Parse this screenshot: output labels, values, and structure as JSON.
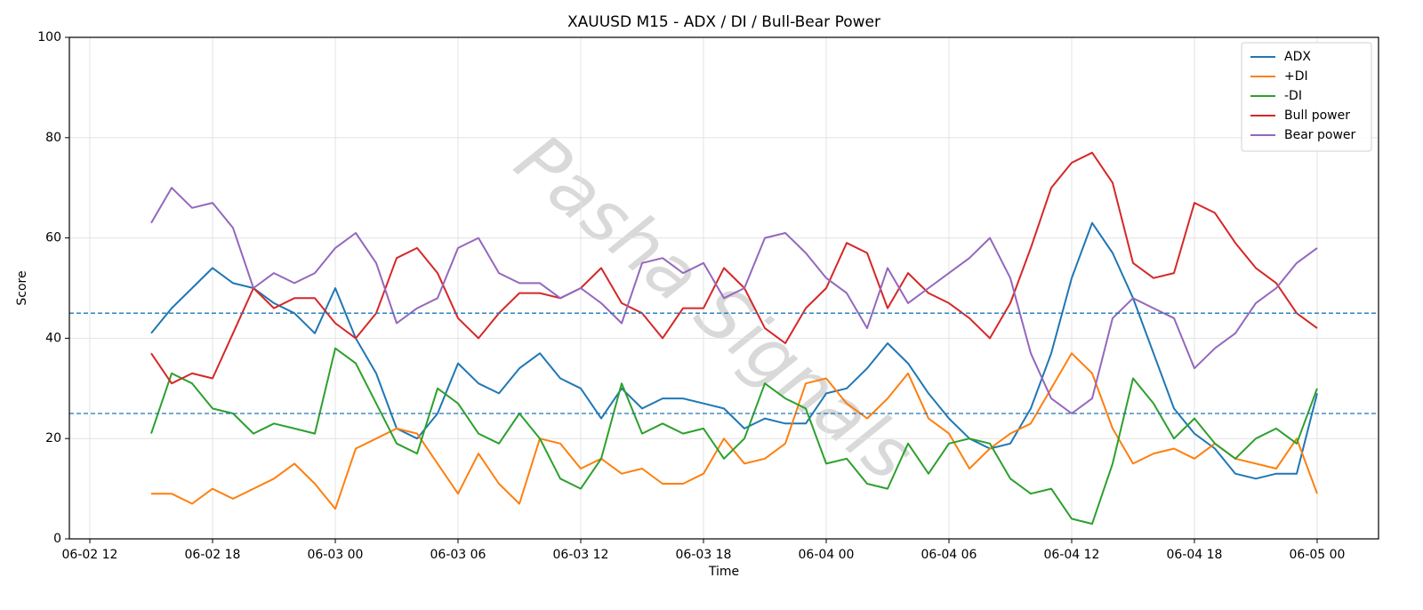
{
  "chart_data": {
    "type": "line",
    "title": "XAUUSD M15 - ADX / DI / Bull-Bear Power",
    "x_label": "Time",
    "y_label": "Score",
    "watermark": "Pasha Signals",
    "x": [
      "06-02 15",
      "06-02 16",
      "06-02 17",
      "06-02 18",
      "06-02 19",
      "06-02 20",
      "06-02 21",
      "06-02 22",
      "06-02 23",
      "06-03 00",
      "06-03 01",
      "06-03 02",
      "06-03 03",
      "06-03 04",
      "06-03 05",
      "06-03 06",
      "06-03 07",
      "06-03 08",
      "06-03 09",
      "06-03 10",
      "06-03 11",
      "06-03 12",
      "06-03 13",
      "06-03 14",
      "06-03 15",
      "06-03 16",
      "06-03 17",
      "06-03 18",
      "06-03 19",
      "06-03 20",
      "06-03 21",
      "06-03 22",
      "06-03 23",
      "06-04 00",
      "06-04 01",
      "06-04 02",
      "06-04 03",
      "06-04 04",
      "06-04 05",
      "06-04 06",
      "06-04 07",
      "06-04 08",
      "06-04 09",
      "06-04 10",
      "06-04 11",
      "06-04 12",
      "06-04 13",
      "06-04 14",
      "06-04 15",
      "06-04 16",
      "06-04 17",
      "06-04 18",
      "06-04 19",
      "06-04 20",
      "06-04 21",
      "06-04 22",
      "06-04 23",
      "06-05 00"
    ],
    "series": [
      {
        "name": "ADX",
        "color": "#1f77b4",
        "values": [
          41,
          46,
          50,
          54,
          51,
          50,
          47,
          45,
          41,
          50,
          40,
          33,
          22,
          20,
          25,
          35,
          31,
          29,
          34,
          37,
          32,
          30,
          24,
          30,
          26,
          28,
          28,
          27,
          26,
          22,
          24,
          23,
          23,
          29,
          30,
          34,
          39,
          35,
          29,
          24,
          20,
          18,
          19,
          26,
          37,
          52,
          63,
          57,
          48,
          37,
          26,
          21,
          18,
          13,
          12,
          13,
          13,
          29
        ]
      },
      {
        "name": "+DI",
        "color": "#ff7f0e",
        "values": [
          9,
          9,
          7,
          10,
          8,
          10,
          12,
          15,
          11,
          6,
          18,
          20,
          22,
          21,
          15,
          9,
          17,
          11,
          7,
          20,
          19,
          14,
          16,
          13,
          14,
          11,
          11,
          13,
          20,
          15,
          16,
          19,
          31,
          32,
          27,
          24,
          28,
          33,
          24,
          21,
          14,
          18,
          21,
          23,
          30,
          37,
          33,
          22,
          15,
          17,
          18,
          16,
          19,
          16,
          15,
          14,
          20,
          9
        ]
      },
      {
        "name": "-DI",
        "color": "#2ca02c",
        "values": [
          21,
          33,
          31,
          26,
          25,
          21,
          23,
          22,
          21,
          38,
          35,
          27,
          19,
          17,
          30,
          27,
          21,
          19,
          25,
          20,
          12,
          10,
          16,
          31,
          21,
          23,
          21,
          22,
          16,
          20,
          31,
          28,
          26,
          15,
          16,
          11,
          10,
          19,
          13,
          19,
          20,
          19,
          12,
          9,
          10,
          4,
          3,
          15,
          32,
          27,
          20,
          24,
          19,
          16,
          20,
          22,
          19,
          30
        ]
      },
      {
        "name": "Bull power",
        "color": "#d62728",
        "values": [
          37,
          31,
          33,
          32,
          41,
          50,
          46,
          48,
          48,
          43,
          40,
          45,
          56,
          58,
          53,
          44,
          40,
          45,
          49,
          49,
          48,
          50,
          54,
          47,
          45,
          40,
          46,
          46,
          54,
          50,
          42,
          39,
          46,
          50,
          59,
          57,
          46,
          53,
          49,
          47,
          44,
          40,
          47,
          58,
          70,
          75,
          77,
          71,
          55,
          52,
          53,
          67,
          65,
          59,
          54,
          51,
          45,
          42
        ]
      },
      {
        "name": "Bear power",
        "color": "#9467bd",
        "values": [
          63,
          70,
          66,
          67,
          62,
          50,
          53,
          51,
          53,
          58,
          61,
          55,
          43,
          46,
          48,
          58,
          60,
          53,
          51,
          51,
          48,
          50,
          47,
          43,
          55,
          56,
          53,
          55,
          48,
          50,
          60,
          61,
          57,
          52,
          49,
          42,
          54,
          47,
          50,
          53,
          56,
          60,
          52,
          37,
          28,
          25,
          28,
          44,
          48,
          46,
          44,
          34,
          38,
          41,
          47,
          50,
          55,
          58
        ]
      }
    ],
    "hlines": [
      25,
      45
    ],
    "hline_color": "#1f77b4",
    "xlim": [
      "06-02 11",
      "06-05 03"
    ],
    "xticks": [
      "06-02 12",
      "06-02 18",
      "06-03 00",
      "06-03 06",
      "06-03 12",
      "06-03 18",
      "06-04 00",
      "06-04 06",
      "06-04 12",
      "06-04 18",
      "06-05 00"
    ],
    "ylim": [
      0,
      100
    ],
    "yticks": [
      0,
      20,
      40,
      60,
      80,
      100
    ],
    "grid": true,
    "legend": "upper-right"
  }
}
